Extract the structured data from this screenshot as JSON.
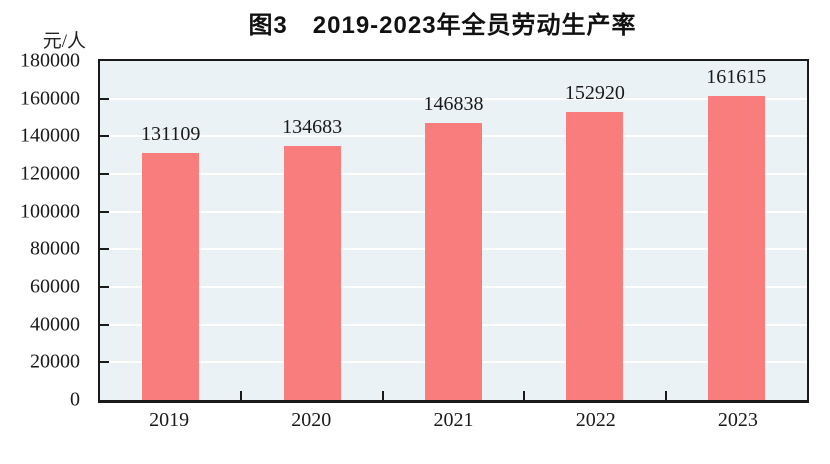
{
  "page": {
    "background": "#FFFFFF"
  },
  "chart_data": {
    "type": "bar",
    "title": "图3　2019-2023年全员劳动生产率",
    "unit_label": "元/人",
    "categories": [
      "2019",
      "2020",
      "2021",
      "2022",
      "2023"
    ],
    "values": [
      131109,
      134683,
      146838,
      152920,
      161615
    ],
    "data_labels": [
      "131109",
      "134683",
      "146838",
      "152920",
      "161615"
    ],
    "ylim": [
      0,
      180000
    ],
    "ytick_step": 20000,
    "ytick_labels": [
      "180000",
      "160000",
      "140000",
      "120000",
      "100000",
      "80000",
      "60000",
      "40000",
      "20000",
      "0"
    ],
    "xlabel": "",
    "ylabel": "元/人",
    "grid": "horizontal-white-lines",
    "legend": "none",
    "colors": {
      "bar": "#FA7D7D",
      "plot_background": "#EBF2F6",
      "gridline": "#FFFFFF",
      "axis": "#1A1A1A",
      "text": "#1A1A1A",
      "page_background": "#FFFFFF"
    }
  }
}
